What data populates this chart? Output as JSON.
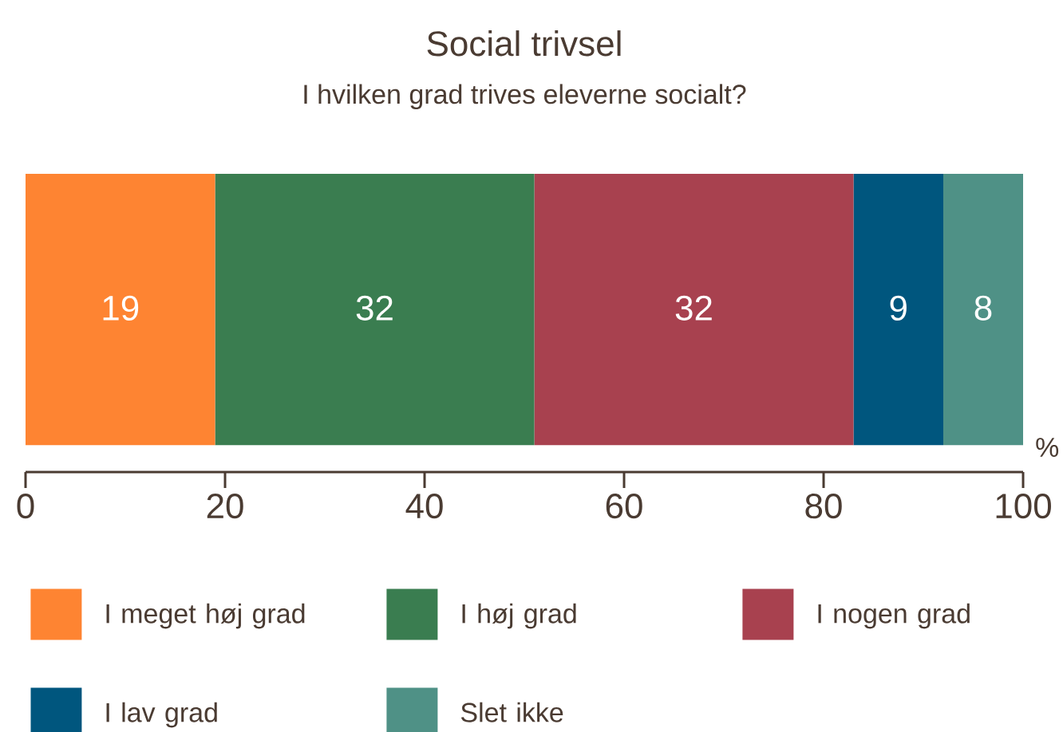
{
  "chart_data": {
    "type": "bar",
    "orientation": "horizontal",
    "stacked": true,
    "title": "Social trivsel",
    "subtitle": "I hvilken grad trives eleverne socialt?",
    "xlabel": "%",
    "categories": [
      null
    ],
    "series": [
      {
        "name": "I meget høj grad",
        "color": "#fe8432",
        "values": [
          19
        ]
      },
      {
        "name": "I høj grad",
        "color": "#3a7d50",
        "values": [
          32
        ]
      },
      {
        "name": "I nogen grad",
        "color": "#a8414f",
        "values": [
          32
        ]
      },
      {
        "name": "I lav grad",
        "color": "#00567e",
        "values": [
          9
        ]
      },
      {
        "name": "Slet ikke",
        "color": "#4f9186",
        "values": [
          8
        ]
      }
    ],
    "xlim": [
      0,
      100
    ],
    "xticks": [
      0,
      20,
      40,
      60,
      80,
      100
    ],
    "data_labels": true,
    "legend": "bottom",
    "grid": false
  }
}
